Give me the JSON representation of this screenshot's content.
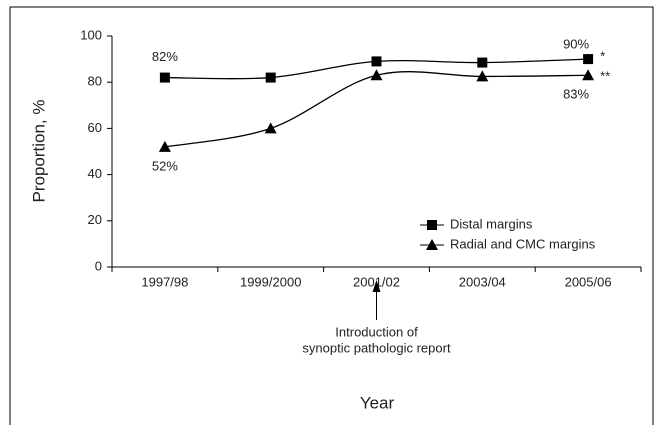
{
  "chart_data": {
    "type": "line",
    "y_label": "Proportion, %",
    "x_label": "Year",
    "categories": [
      "1997/98",
      "1999/2000",
      "2001/02",
      "2003/04",
      "2005/06"
    ],
    "series": [
      {
        "name": "Distal margins",
        "color": "#000000",
        "marker": "square",
        "values": [
          82,
          82,
          89,
          88.5,
          90
        ],
        "value_labels": [
          "82%",
          null,
          null,
          null,
          "90%"
        ],
        "significance": "*"
      },
      {
        "name": "Radial and CMC margins",
        "color": "#000000",
        "marker": "triangle",
        "values": [
          52,
          60,
          83,
          82.5,
          83
        ],
        "value_labels": [
          "52%",
          null,
          null,
          null,
          "83%"
        ],
        "significance": "**"
      }
    ],
    "ylim": [
      0,
      100
    ],
    "yticks": [
      0,
      20,
      40,
      60,
      80,
      100
    ],
    "annotation": {
      "category_index": 2,
      "lines": [
        "Introduction of",
        "synoptic pathologic report"
      ]
    },
    "legend": "lower right"
  }
}
